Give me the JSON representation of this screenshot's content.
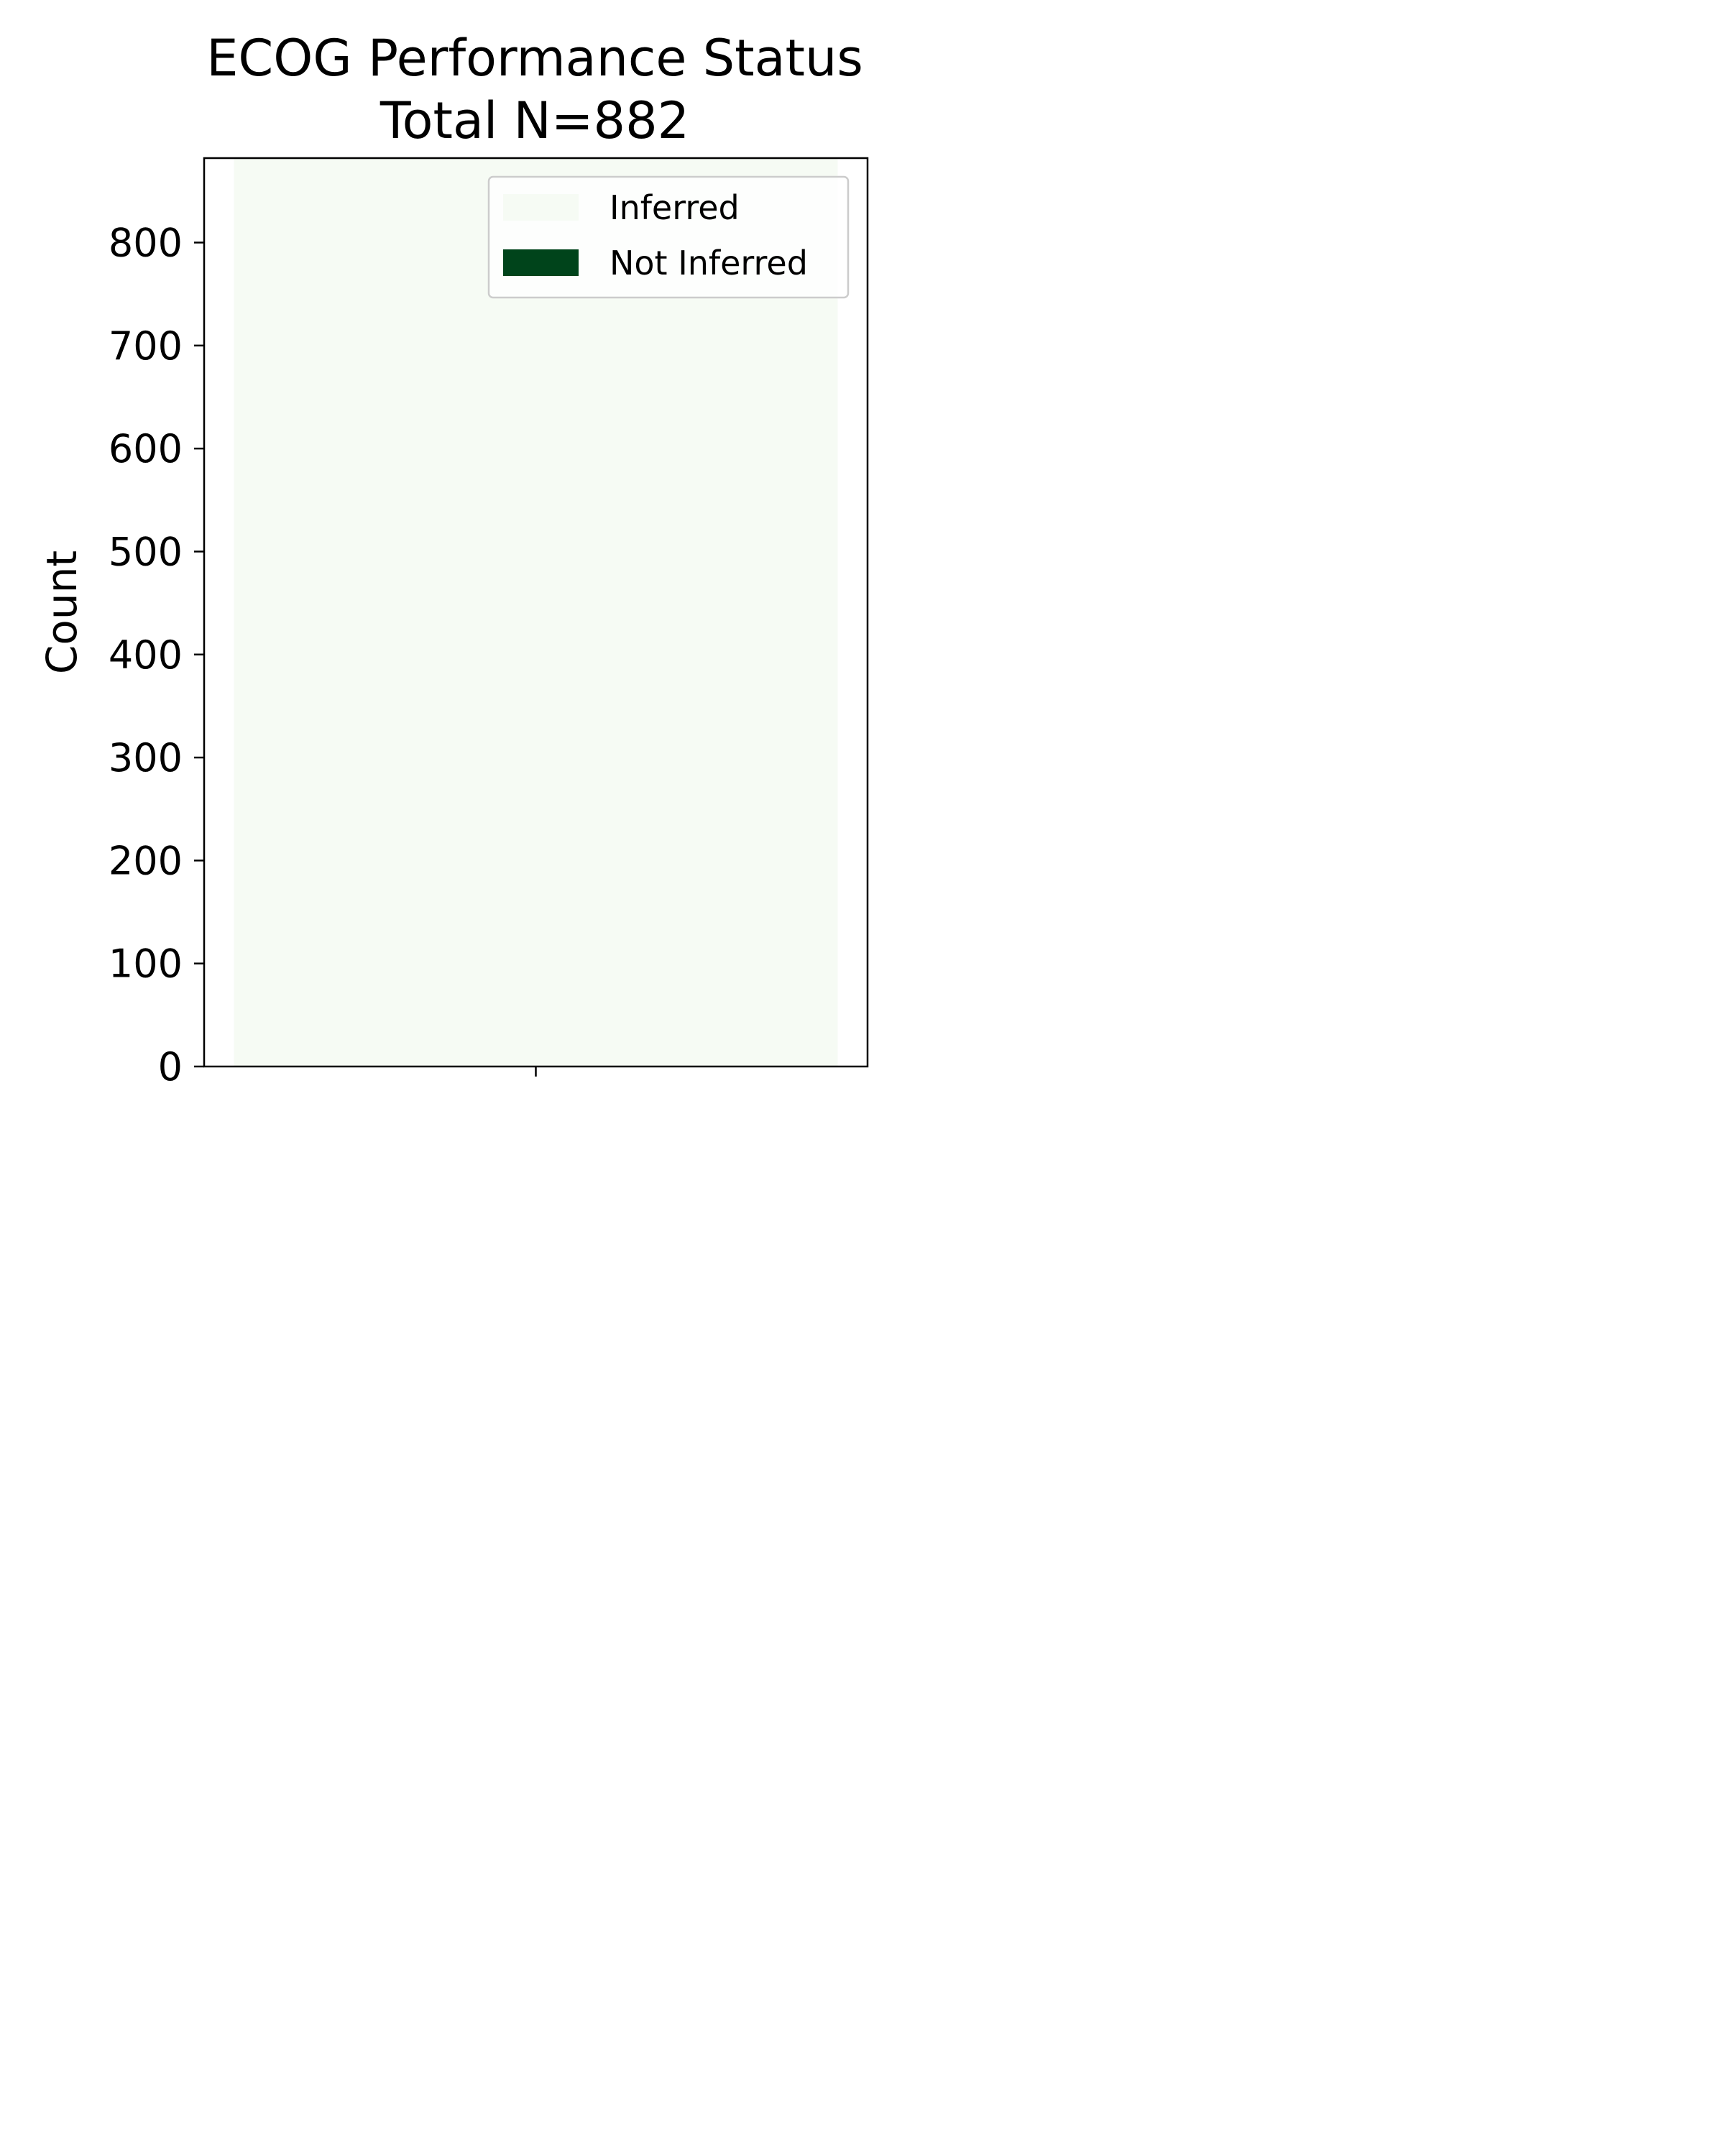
{
  "chart_data": {
    "type": "bar",
    "title": "ECOG Performance Status",
    "subtitle": "Total N=882",
    "xlabel": "",
    "ylabel": "Count",
    "categories": [
      ""
    ],
    "series": [
      {
        "name": "Inferred",
        "values": [
          882
        ],
        "color": "#f6fbf4"
      },
      {
        "name": "Not Inferred",
        "values": [
          0
        ],
        "color": "#00441b"
      }
    ],
    "ylim": [
      0,
      882
    ],
    "yticks": [
      0,
      100,
      200,
      300,
      400,
      500,
      600,
      700,
      800
    ],
    "grid": false,
    "legend": {
      "position": "top-right",
      "entries": [
        "Inferred",
        "Not Inferred"
      ]
    }
  }
}
